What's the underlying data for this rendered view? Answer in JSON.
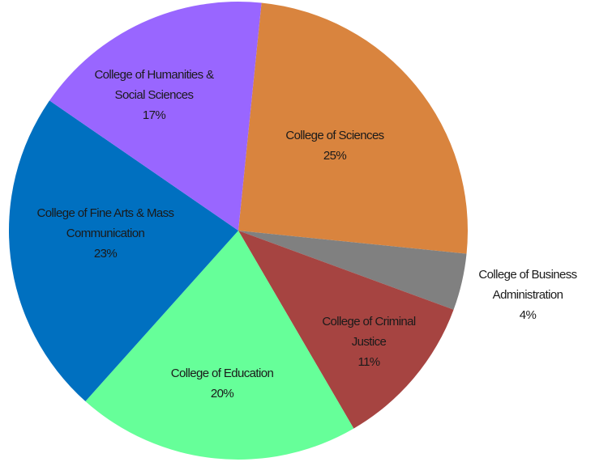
{
  "chart_data": {
    "type": "pie",
    "categories": [
      "College of Sciences",
      "College of Business\nAdministration",
      "College of Criminal\nJustice",
      "College of Education",
      "College of Fine Arts & Mass\nCommunication",
      "College of Humanities &\nSocial Sciences"
    ],
    "values": [
      25,
      4,
      11,
      20,
      23,
      17
    ],
    "value_labels": [
      "25%",
      "4%",
      "11%",
      "20%",
      "23%",
      "17%"
    ],
    "colors": [
      "#d9843e",
      "#808080",
      "#a64441",
      "#66ff99",
      "#0070c0",
      "#9966ff"
    ]
  }
}
